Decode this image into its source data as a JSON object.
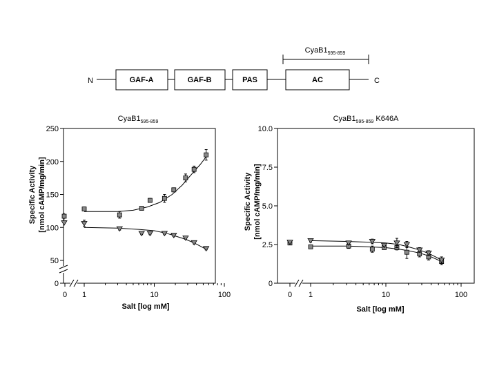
{
  "schematic": {
    "n_label": "N",
    "c_label": "C",
    "domains": [
      "GAF-A",
      "GAF-B",
      "PAS",
      "AC"
    ],
    "construct_name": "CyaB1",
    "construct_sub": "595-859"
  },
  "chart_data": [
    {
      "type": "scatter",
      "title": "CyaB1",
      "title_sub": "595-859",
      "title_suffix": "",
      "xlabel": "Salt [log mM]",
      "ylabel_line1": "Specific Activity",
      "ylabel_line2": "[nmol cAMP/mg/min]",
      "x_scale": "log",
      "x_ticks": [
        "0",
        "1",
        "10",
        "100"
      ],
      "y_ticks": [
        "0",
        "50",
        "100",
        "150",
        "200",
        "250"
      ],
      "xlim": [
        1,
        100
      ],
      "ylim": [
        0,
        250
      ],
      "y_axis_break": true,
      "x_axis_break": true,
      "series": [
        {
          "marker": "square",
          "zero_point": {
            "x": 0,
            "y": 117,
            "err": 5
          },
          "points": [
            {
              "x": 1,
              "y": 128,
              "err": 3
            },
            {
              "x": 3.2,
              "y": 119,
              "err": 5
            },
            {
              "x": 6.6,
              "y": 129,
              "err": 2
            },
            {
              "x": 8.7,
              "y": 141,
              "err": 3
            },
            {
              "x": 14,
              "y": 144,
              "err": 6
            },
            {
              "x": 19,
              "y": 157,
              "err": 3
            },
            {
              "x": 28,
              "y": 175,
              "err": 6
            },
            {
              "x": 37,
              "y": 188,
              "err": 5
            },
            {
              "x": 55,
              "y": 210,
              "err": 8
            }
          ],
          "fit": [
            [
              1,
              124
            ],
            [
              3,
              124
            ],
            [
              5,
              126
            ],
            [
              8,
              131
            ],
            [
              12,
              138
            ],
            [
              18,
              150
            ],
            [
              25,
              164
            ],
            [
              35,
              182
            ],
            [
              45,
              195
            ],
            [
              55,
              207
            ]
          ]
        },
        {
          "marker": "triangle-down",
          "zero_point": {
            "x": 0,
            "y": 107,
            "err": 3
          },
          "points": [
            {
              "x": 1,
              "y": 106,
              "err": 5
            },
            {
              "x": 3.2,
              "y": 98,
              "err": 2
            },
            {
              "x": 6.6,
              "y": 91,
              "err": 2
            },
            {
              "x": 8.7,
              "y": 91,
              "err": 2
            },
            {
              "x": 14,
              "y": 91,
              "err": 2
            },
            {
              "x": 19,
              "y": 88,
              "err": 2
            },
            {
              "x": 28,
              "y": 84,
              "err": 2
            },
            {
              "x": 37,
              "y": 77,
              "err": 2
            },
            {
              "x": 55,
              "y": 68,
              "err": 2
            }
          ],
          "fit": [
            [
              1,
              100
            ],
            [
              3,
              99
            ],
            [
              6,
              97
            ],
            [
              10,
              95
            ],
            [
              15,
              91
            ],
            [
              20,
              87
            ],
            [
              28,
              82
            ],
            [
              38,
              76
            ],
            [
              55,
              67
            ]
          ]
        }
      ]
    },
    {
      "type": "scatter",
      "title": "CyaB1",
      "title_sub": "595-859",
      "title_suffix": " K646A",
      "xlabel": "Salt [log mM]",
      "ylabel_line1": "Specific Activity",
      "ylabel_line2": "[nmol cAMP/mg/min]",
      "x_scale": "log",
      "x_ticks": [
        "0",
        "1",
        "10",
        "100"
      ],
      "y_ticks": [
        "0",
        "2.5",
        "5.0",
        "7.5",
        "10.0"
      ],
      "xlim": [
        1,
        100
      ],
      "ylim": [
        0,
        10
      ],
      "y_axis_break": false,
      "x_axis_break": true,
      "series": [
        {
          "marker": "square",
          "zero_point": {
            "x": 0,
            "y": 2.6,
            "err": 0.1
          },
          "points": [
            {
              "x": 1,
              "y": 2.35,
              "err": 0.1
            },
            {
              "x": 3.2,
              "y": 2.4,
              "err": 0.15
            },
            {
              "x": 6.6,
              "y": 2.2,
              "err": 0.2
            },
            {
              "x": 9.5,
              "y": 2.3,
              "err": 0.1
            },
            {
              "x": 14,
              "y": 2.3,
              "err": 0.15
            },
            {
              "x": 19,
              "y": 2.0,
              "err": 0.4
            },
            {
              "x": 28,
              "y": 1.9,
              "err": 0.2
            },
            {
              "x": 37,
              "y": 1.7,
              "err": 0.2
            },
            {
              "x": 55,
              "y": 1.4,
              "err": 0.2
            }
          ],
          "fit": [
            [
              1,
              2.4
            ],
            [
              3,
              2.4
            ],
            [
              6,
              2.35
            ],
            [
              10,
              2.3
            ],
            [
              15,
              2.2
            ],
            [
              20,
              2.1
            ],
            [
              28,
              1.95
            ],
            [
              38,
              1.75
            ],
            [
              55,
              1.4
            ]
          ]
        },
        {
          "marker": "triangle-down",
          "zero_point": {
            "x": 0,
            "y": 2.65,
            "err": 0.1
          },
          "points": [
            {
              "x": 1,
              "y": 2.75,
              "err": 0.1
            },
            {
              "x": 3.2,
              "y": 2.6,
              "err": 0.1
            },
            {
              "x": 6.6,
              "y": 2.7,
              "err": 0.15
            },
            {
              "x": 9.5,
              "y": 2.45,
              "err": 0.1
            },
            {
              "x": 14,
              "y": 2.6,
              "err": 0.3
            },
            {
              "x": 19,
              "y": 2.5,
              "err": 0.2
            },
            {
              "x": 28,
              "y": 2.15,
              "err": 0.15
            },
            {
              "x": 37,
              "y": 1.95,
              "err": 0.15
            },
            {
              "x": 55,
              "y": 1.5,
              "err": 0.2
            }
          ],
          "fit": [
            [
              1,
              2.75
            ],
            [
              3,
              2.7
            ],
            [
              6,
              2.65
            ],
            [
              10,
              2.6
            ],
            [
              15,
              2.5
            ],
            [
              20,
              2.35
            ],
            [
              28,
              2.15
            ],
            [
              38,
              1.9
            ],
            [
              55,
              1.5
            ]
          ]
        }
      ]
    }
  ]
}
